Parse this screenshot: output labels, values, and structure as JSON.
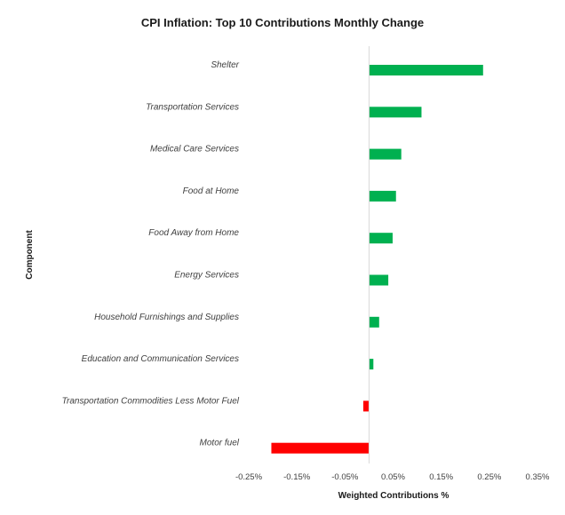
{
  "chart_data": {
    "type": "bar",
    "orientation": "horizontal",
    "title": "CPI Inflation: Top 10 Contributions Monthly Change",
    "xlabel": "Weighted Contributions %",
    "ylabel": "Component",
    "xlim": [
      -0.25,
      0.35
    ],
    "xticks": [
      -0.25,
      -0.15,
      -0.05,
      0.05,
      0.15,
      0.25,
      0.35
    ],
    "xtick_labels": [
      "-0.25%",
      "-0.15%",
      "-0.05%",
      "0.05%",
      "0.15%",
      "0.25%",
      "0.35%"
    ],
    "categories": [
      "Shelter",
      "Transportation Services",
      "Medical Care Services",
      "Food at Home",
      "Food Away from Home",
      "Energy Services",
      "Household Furnishings and Supplies",
      "Education and Communication Services",
      "Transportation Commodities Less Motor Fuel",
      "Motor fuel"
    ],
    "values": [
      0.237,
      0.109,
      0.067,
      0.056,
      0.049,
      0.04,
      0.021,
      0.009,
      -0.012,
      -0.203
    ],
    "grid": false,
    "colors": {
      "positive": "#00b050",
      "negative": "#ff0000",
      "axis": "#d9d9d9"
    }
  }
}
